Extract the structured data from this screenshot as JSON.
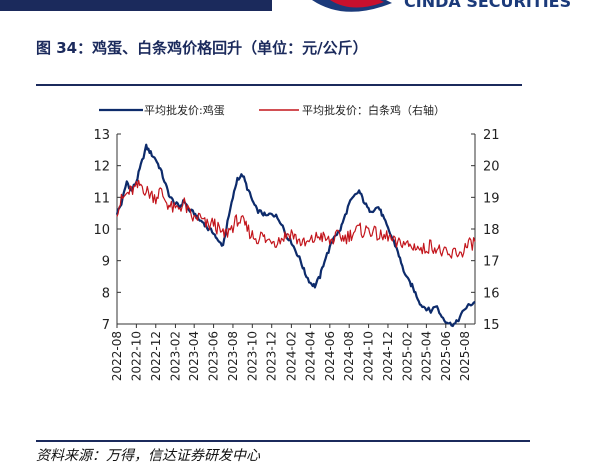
{
  "header": {
    "brand_text": "CINDA SECURITIES",
    "title": "图 34：鸡蛋、白条鸡价格回升（单位：元/公斤）"
  },
  "footer": {
    "source": "资料来源：万得，信达证券研发中心"
  },
  "colors": {
    "navy": "#1b2a5c",
    "egg_series": "#0d2b6b",
    "chicken_series": "#c3151c",
    "logo_red": "#c8102e"
  },
  "chart_data": {
    "type": "line",
    "title": "",
    "xlabel": "",
    "ylabel": "",
    "ylabel_right": "",
    "ylim": [
      7,
      13
    ],
    "ylim_right": [
      15,
      21
    ],
    "yticks": [
      "13",
      "12",
      "11",
      "10",
      "9",
      "8",
      "7"
    ],
    "yticks_right": [
      "21",
      "20",
      "19",
      "18",
      "17",
      "16",
      "15"
    ],
    "xlim": [
      "2022-08",
      "2025-09"
    ],
    "xticks": [
      "2022-08",
      "2022-10",
      "2022-12",
      "2023-02",
      "2023-04",
      "2023-06",
      "2023-08",
      "2023-10",
      "2023-12",
      "2024-02",
      "2024-04",
      "2024-06",
      "2024-08",
      "2024-10",
      "2024-12",
      "2025-02",
      "2025-04",
      "2025-06",
      "2025-08"
    ],
    "grid": false,
    "legend_position": "top",
    "series": [
      {
        "name": "平均批发价:鸡蛋",
        "axis": "left",
        "x": [
          "2022-08-01",
          "2022-08-15",
          "2022-09-01",
          "2022-09-15",
          "2022-10-01",
          "2022-10-15",
          "2022-11-01",
          "2022-11-15",
          "2022-12-01",
          "2022-12-15",
          "2023-01-01",
          "2023-01-15",
          "2023-02-01",
          "2023-02-15",
          "2023-03-01",
          "2023-03-15",
          "2023-04-01",
          "2023-04-15",
          "2023-05-01",
          "2023-05-15",
          "2023-06-01",
          "2023-06-15",
          "2023-07-01",
          "2023-07-15",
          "2023-08-01",
          "2023-08-15",
          "2023-09-01",
          "2023-09-15",
          "2023-10-01",
          "2023-10-15",
          "2023-11-01",
          "2023-11-15",
          "2023-12-01",
          "2023-12-15",
          "2024-01-01",
          "2024-01-15",
          "2024-02-01",
          "2024-02-15",
          "2024-03-01",
          "2024-03-15",
          "2024-04-01",
          "2024-04-15",
          "2024-05-01",
          "2024-05-15",
          "2024-06-01",
          "2024-06-15",
          "2024-07-01",
          "2024-07-15",
          "2024-08-01",
          "2024-08-15",
          "2024-09-01",
          "2024-09-15",
          "2024-10-01",
          "2024-10-15",
          "2024-11-01",
          "2024-11-15",
          "2024-12-01",
          "2024-12-15",
          "2025-01-01",
          "2025-01-15",
          "2025-02-01",
          "2025-02-15",
          "2025-03-01",
          "2025-03-15",
          "2025-04-01",
          "2025-04-15",
          "2025-05-01",
          "2025-05-15",
          "2025-06-01",
          "2025-06-15",
          "2025-07-01",
          "2025-07-15",
          "2025-08-01",
          "2025-08-15",
          "2025-09-01"
        ],
        "values": [
          10.5,
          10.8,
          11.5,
          11.2,
          11.5,
          12.0,
          12.6,
          12.4,
          12.2,
          11.9,
          11.4,
          11.0,
          10.8,
          10.7,
          10.9,
          10.6,
          10.5,
          10.3,
          10.2,
          10.0,
          9.9,
          9.6,
          9.5,
          10.2,
          11.0,
          11.6,
          11.7,
          11.3,
          10.9,
          10.6,
          10.5,
          10.4,
          10.5,
          10.4,
          10.2,
          9.8,
          9.6,
          9.3,
          9.0,
          8.6,
          8.3,
          8.2,
          8.5,
          9.0,
          9.4,
          9.8,
          9.9,
          10.3,
          10.8,
          11.0,
          11.2,
          10.9,
          10.6,
          10.6,
          10.7,
          10.4,
          10.0,
          9.7,
          9.3,
          8.8,
          8.4,
          8.2,
          7.9,
          7.6,
          7.5,
          7.4,
          7.6,
          7.3,
          7.1,
          7.0,
          7.0,
          7.2,
          7.5,
          7.6,
          7.7
        ]
      },
      {
        "name": "平均批发价：白条鸡（右轴）",
        "axis": "right",
        "x": [
          "2022-08-01",
          "2022-08-15",
          "2022-09-01",
          "2022-09-15",
          "2022-10-01",
          "2022-10-15",
          "2022-11-01",
          "2022-11-15",
          "2022-12-01",
          "2022-12-15",
          "2023-01-01",
          "2023-01-15",
          "2023-02-01",
          "2023-02-15",
          "2023-03-01",
          "2023-03-15",
          "2023-04-01",
          "2023-04-15",
          "2023-05-01",
          "2023-05-15",
          "2023-06-01",
          "2023-06-15",
          "2023-07-01",
          "2023-07-15",
          "2023-08-01",
          "2023-08-15",
          "2023-09-01",
          "2023-09-15",
          "2023-10-01",
          "2023-10-15",
          "2023-11-01",
          "2023-11-15",
          "2023-12-01",
          "2023-12-15",
          "2024-01-01",
          "2024-01-15",
          "2024-02-01",
          "2024-02-15",
          "2024-03-01",
          "2024-03-15",
          "2024-04-01",
          "2024-04-15",
          "2024-05-01",
          "2024-05-15",
          "2024-06-01",
          "2024-06-15",
          "2024-07-01",
          "2024-07-15",
          "2024-08-01",
          "2024-08-15",
          "2024-09-01",
          "2024-09-15",
          "2024-10-01",
          "2024-10-15",
          "2024-11-01",
          "2024-11-15",
          "2024-12-01",
          "2024-12-15",
          "2025-01-01",
          "2025-01-15",
          "2025-02-01",
          "2025-02-15",
          "2025-03-01",
          "2025-03-15",
          "2025-04-01",
          "2025-04-15",
          "2025-05-01",
          "2025-05-15",
          "2025-06-01",
          "2025-06-15",
          "2025-07-01",
          "2025-07-15",
          "2025-08-01",
          "2025-08-15",
          "2025-09-01"
        ],
        "values": [
          18.6,
          18.9,
          19.1,
          19.2,
          19.3,
          19.4,
          19.2,
          19.1,
          19.0,
          19.2,
          18.9,
          18.7,
          18.6,
          18.7,
          18.8,
          18.5,
          18.3,
          18.4,
          18.2,
          18.1,
          18.2,
          18.0,
          17.8,
          17.9,
          18.1,
          18.3,
          18.2,
          18.0,
          17.8,
          17.7,
          17.8,
          17.6,
          17.7,
          17.6,
          17.7,
          17.8,
          17.9,
          17.7,
          17.6,
          17.5,
          17.6,
          17.7,
          17.8,
          17.7,
          17.6,
          17.7,
          17.8,
          17.7,
          17.8,
          17.9,
          18.0,
          17.9,
          18.0,
          17.9,
          17.8,
          17.7,
          17.8,
          17.6,
          17.5,
          17.6,
          17.5,
          17.4,
          17.5,
          17.3,
          17.4,
          17.5,
          17.4,
          17.3,
          17.2,
          17.1,
          17.3,
          17.2,
          17.4,
          17.5,
          17.6
        ]
      }
    ]
  }
}
